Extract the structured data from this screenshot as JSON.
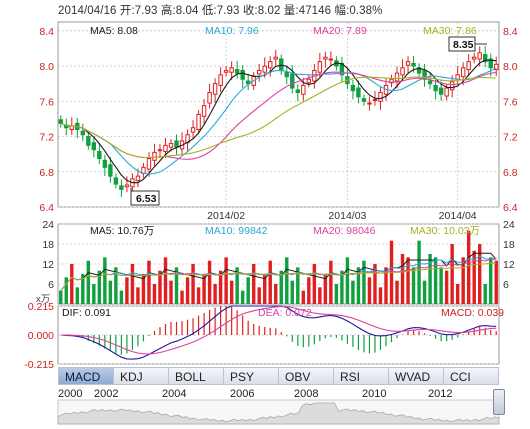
{
  "header": {
    "date_label": "2014/04/16",
    "open_label": "开:7.93",
    "high_label": "高:8.04",
    "low_label": "低:7.93",
    "close_label": "收:8.02",
    "volume_label": "量:47146",
    "change_label": "幅:0.38%"
  },
  "price_panel": {
    "ma_labels": [
      "MA5: 8.08",
      "MA10: 7.96",
      "MA20: 7.89",
      "MA30: 7.86"
    ],
    "ma_colors": [
      "#1a1a1a",
      "#2aa8d8",
      "#e040a0",
      "#a8b020"
    ],
    "max_callout": "8.35",
    "min_callout": "6.53",
    "y_ticks": [
      "8.4",
      "8.0",
      "7.6",
      "7.2",
      "6.8",
      "6.4"
    ],
    "x_ticks": [
      "2014/02",
      "2014/03",
      "2014/04"
    ]
  },
  "volume_panel": {
    "ma_labels": [
      "MA5: 10.76万",
      "MA10: 99842",
      "MA20: 98046",
      "MA30: 10.03万"
    ],
    "y_ticks": [
      "24",
      "18",
      "12",
      "6"
    ],
    "unit_label": "x万"
  },
  "macd_panel": {
    "dif_label": "DIF: 0.091",
    "dea_label": "DEA: 0.072",
    "macd_label": "MACD: 0.039",
    "y_ticks": [
      "0.215",
      "0.000",
      "-0.215"
    ]
  },
  "tabs": [
    "MACD",
    "KDJ",
    "BOLL",
    "PSY",
    "OBV",
    "RSI",
    "WVAD",
    "CCI"
  ],
  "active_tab": "MACD",
  "years": [
    "2000",
    "2002",
    "2004",
    "2006",
    "2008",
    "2010",
    "2012"
  ],
  "colors": {
    "up": "#e02020",
    "down": "#10a040",
    "panel_bg": "#ffffff",
    "grid": "#c8c8c8",
    "axis_text": "#d02020"
  },
  "chart_data": {
    "type": "candlestick",
    "x_ticks": [
      "2014/02",
      "2014/03",
      "2014/04"
    ],
    "y_range": [
      6.4,
      8.5
    ],
    "highest": 8.35,
    "lowest": 6.53,
    "close_approx": [
      7.35,
      7.3,
      7.32,
      7.28,
      7.22,
      7.1,
      7.05,
      6.95,
      6.85,
      6.75,
      6.66,
      6.6,
      6.65,
      6.72,
      6.75,
      6.85,
      6.95,
      7.02,
      7.05,
      7.1,
      7.12,
      7.08,
      7.15,
      7.22,
      7.3,
      7.45,
      7.55,
      7.7,
      7.8,
      7.9,
      7.95,
      7.98,
      7.92,
      7.85,
      7.8,
      7.88,
      7.95,
      8.0,
      8.05,
      8.1,
      7.95,
      7.88,
      7.75,
      7.7,
      7.78,
      7.85,
      7.95,
      8.05,
      8.1,
      8.08,
      8.0,
      7.9,
      7.8,
      7.72,
      7.65,
      7.6,
      7.58,
      7.62,
      7.7,
      7.78,
      7.85,
      7.92,
      7.98,
      8.05,
      8.0,
      7.92,
      7.85,
      7.8,
      7.72,
      7.68,
      7.75,
      7.82,
      7.9,
      7.98,
      8.05,
      8.1,
      8.15,
      8.05,
      7.98,
      8.02
    ],
    "volume_range": [
      0,
      24
    ],
    "volume_ma": {
      "MA5": "10.76万",
      "MA10": "99842",
      "MA20": "98046",
      "MA30": "10.03万"
    },
    "macd_range": [
      -0.215,
      0.215
    ],
    "macd_values": {
      "DIF": 0.091,
      "DEA": 0.072,
      "MACD": 0.039
    },
    "series": [
      {
        "name": "MA5",
        "value": 8.08
      },
      {
        "name": "MA10",
        "value": 7.96
      },
      {
        "name": "MA20",
        "value": 7.89
      },
      {
        "name": "MA30",
        "value": 7.86
      }
    ]
  }
}
